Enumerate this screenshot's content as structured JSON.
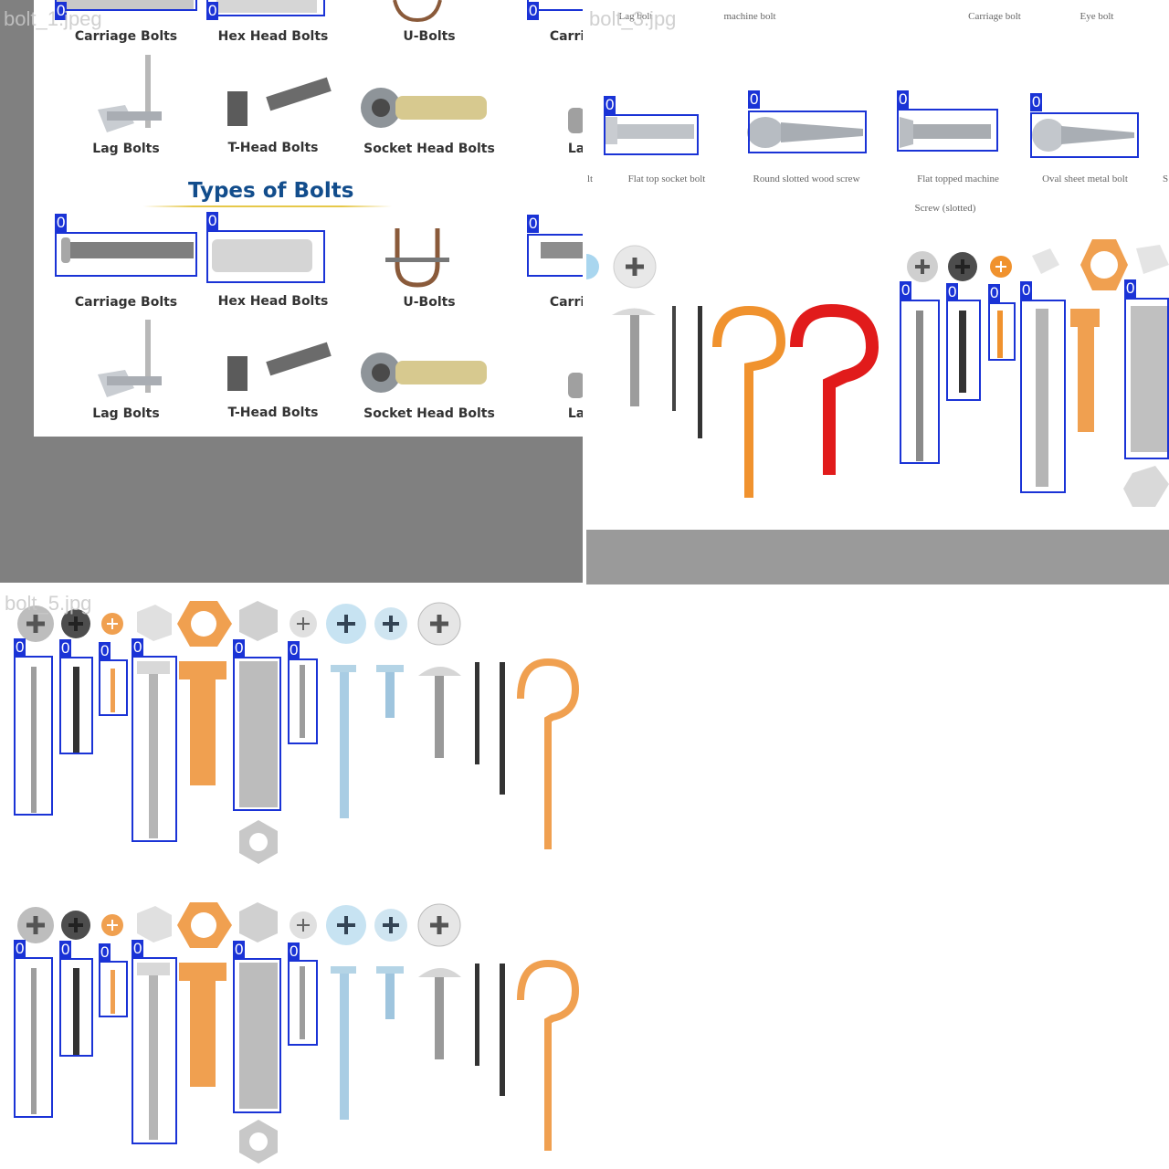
{
  "mosaic": {
    "tile1": {
      "filename": "bolt_1.jpeg",
      "title": "Types of Bolts",
      "row_labels": [
        "Carriage Bolts",
        "Hex Head Bolts",
        "U-Bolts",
        "Carri"
      ],
      "row_labels_2": [
        "Lag Bolts",
        "T-Head Bolts",
        "Socket Head Bolts",
        "La"
      ]
    },
    "tile2": {
      "filename": "bolt_3.jpg",
      "top_labels": [
        "Lag bolt",
        "machine bolt",
        "Carriage bolt",
        "Eye bolt"
      ],
      "mid_labels": [
        "lt",
        "Flat top socket bolt",
        "Round slotted wood screw",
        "Flat topped machine",
        "Oval sheet metal bolt",
        "S"
      ],
      "mid_label_line2": "Screw (slotted)"
    },
    "tile3": {
      "filename": "bolt_5.jpg"
    },
    "detection_class": "0",
    "colors": {
      "box": "#1a33d6",
      "title_blue": "#124d8c",
      "underline_gold": "#e6c84a",
      "background_gray": "#808080",
      "band_gray": "#9a9a9a",
      "orange_hook": "#f0922e",
      "red_hook": "#e11b1b",
      "copper": "#f0a050"
    }
  }
}
